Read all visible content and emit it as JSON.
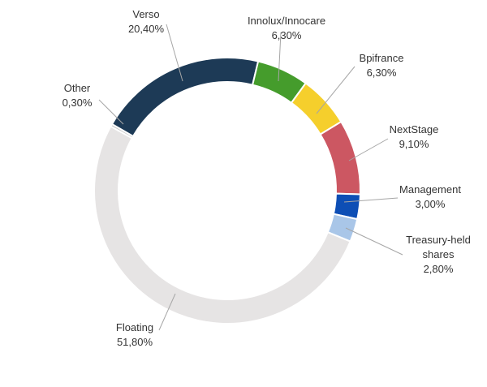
{
  "chart_data": {
    "type": "pie",
    "variant": "donut",
    "title": "",
    "legend": "none",
    "start_angle_deg": -60,
    "direction": "clockwise",
    "slices": [
      {
        "name": "Verso",
        "value_label": "20,40%",
        "value": 20.4,
        "color": "#1d3a56"
      },
      {
        "name": "Innolux/Innocare",
        "value_label": "6,30%",
        "value": 6.3,
        "color": "#459c2c"
      },
      {
        "name": "Bpifrance",
        "value_label": "6,30%",
        "value": 6.3,
        "color": "#f5cf2c"
      },
      {
        "name": "NextStage",
        "value_label": "9,10%",
        "value": 9.1,
        "color": "#cc5762"
      },
      {
        "name": "Management",
        "value_label": "3,00%",
        "value": 3.0,
        "color": "#0d4eb5"
      },
      {
        "name": "Treasury-held shares",
        "name_lines": [
          "Treasury-held",
          "shares"
        ],
        "value_label": "2,80%",
        "value": 2.8,
        "color": "#a9c6e8"
      },
      {
        "name": "Floating",
        "value_label": "51,80%",
        "value": 51.8,
        "color": "#e6e4e4"
      },
      {
        "name": "Other",
        "value_label": "0,30%",
        "value": 0.3,
        "color": "#c9c9c9"
      }
    ]
  }
}
